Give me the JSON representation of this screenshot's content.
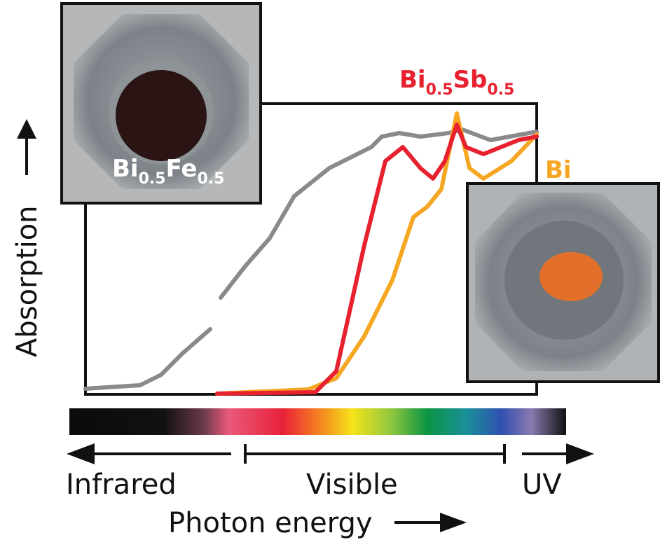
{
  "y_axis": {
    "label": "Absorption"
  },
  "x_axis": {
    "label": "Photon energy",
    "regions": [
      "Infrared",
      "Visible",
      "UV"
    ]
  },
  "samples": [
    {
      "parts": [
        "Bi",
        "0.5",
        "Fe",
        "0.5"
      ]
    },
    {
      "parts": [
        "Bi",
        "0.5",
        "Sb",
        "0.5"
      ]
    },
    {
      "parts": [
        "Bi"
      ]
    }
  ]
}
